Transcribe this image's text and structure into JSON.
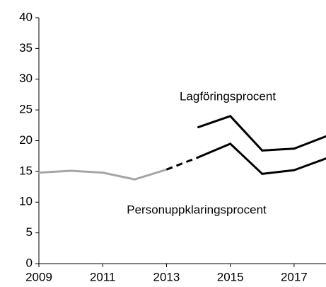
{
  "chart_data": {
    "type": "line",
    "x": [
      2009,
      2010,
      2011,
      2012,
      2013,
      2014,
      2015,
      2016,
      2017,
      2018
    ],
    "series": [
      {
        "name": "Lagföringsprocent",
        "color": "#000000",
        "values": [
          null,
          null,
          null,
          null,
          null,
          22.2,
          24.0,
          18.4,
          18.7,
          20.7
        ]
      },
      {
        "name": "Personuppklaringsprocent",
        "color": "#000000",
        "values": [
          14.8,
          15.1,
          14.8,
          13.7,
          15.3,
          17.3,
          19.5,
          14.6,
          15.2,
          17.1
        ],
        "segment_colors": [
          "#a6a6a6",
          "#a6a6a6",
          "#a6a6a6",
          "#a6a6a6",
          "#000000",
          "#000000",
          "#000000",
          "#000000",
          "#000000"
        ],
        "dashed_segments": [
          4
        ]
      }
    ],
    "xlim": [
      2009,
      2018
    ],
    "xticks": [
      2009,
      2011,
      2013,
      2015,
      2017
    ],
    "ylim": [
      0,
      40
    ],
    "yticks": [
      0,
      5,
      10,
      15,
      20,
      25,
      30,
      35,
      40
    ],
    "grid": false
  }
}
